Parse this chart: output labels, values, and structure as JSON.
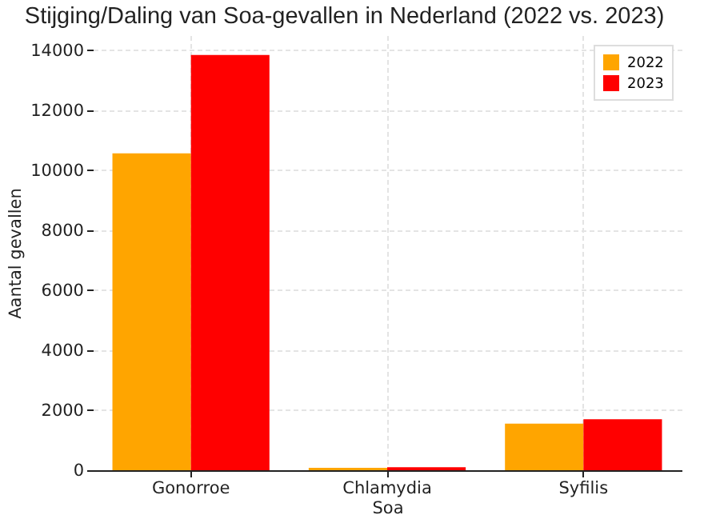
{
  "chart_data": {
    "type": "bar",
    "title": "Stijging/Daling van Soa-gevallen in Nederland (2022 vs. 2023)",
    "xlabel": "Soa",
    "ylabel": "Aantal gevallen",
    "categories": [
      "Gonorroe",
      "Chlamydia",
      "Syfilis"
    ],
    "series": [
      {
        "name": "2022",
        "color": "#ffa500",
        "values": [
          10560,
          80,
          1550
        ]
      },
      {
        "name": "2023",
        "color": "#ff0000",
        "values": [
          13840,
          100,
          1700
        ]
      }
    ],
    "ylim": [
      0,
      14500
    ],
    "yticks": [
      0,
      2000,
      4000,
      6000,
      8000,
      10000,
      12000,
      14000
    ],
    "grid": true,
    "legend": "top right"
  }
}
